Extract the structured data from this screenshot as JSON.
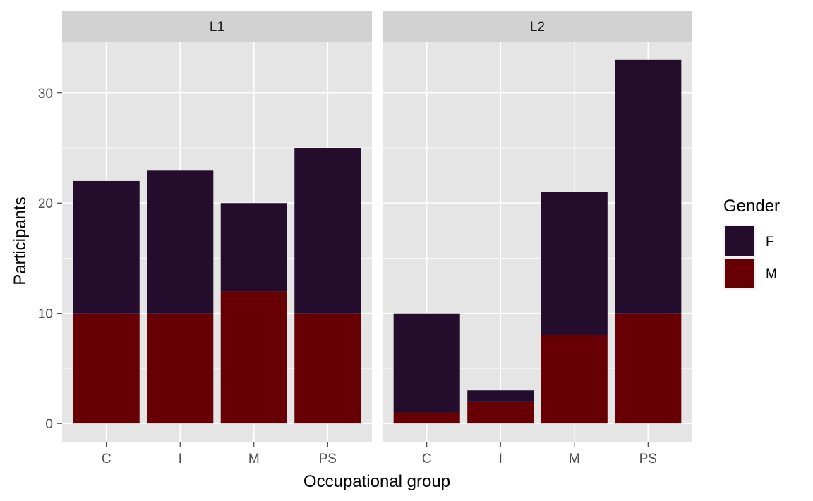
{
  "chart_data": {
    "type": "bar",
    "stacked": true,
    "facets": [
      {
        "label": "L1",
        "categories": [
          "C",
          "I",
          "M",
          "PS"
        ],
        "series": [
          {
            "name": "F",
            "values": [
              12,
              13,
              8,
              15
            ]
          },
          {
            "name": "M",
            "values": [
              10,
              10,
              12,
              10
            ]
          }
        ]
      },
      {
        "label": "L2",
        "categories": [
          "C",
          "I",
          "M",
          "PS"
        ],
        "series": [
          {
            "name": "F",
            "values": [
              9,
              1,
              13,
              23
            ]
          },
          {
            "name": "M",
            "values": [
              1,
              2,
              8,
              10
            ]
          }
        ]
      }
    ],
    "xlabel": "Occupational group",
    "ylabel": "Participants",
    "ylim": [
      -1.65,
      34.65
    ],
    "yticks": [
      0,
      10,
      20,
      30
    ],
    "grid": true,
    "legend": {
      "title": "Gender",
      "placement": "right",
      "entries": [
        {
          "name": "F",
          "color": "#230c2c"
        },
        {
          "name": "M",
          "color": "#660004"
        }
      ]
    },
    "colors": {
      "F": "#230c2c",
      "M": "#660004",
      "panel_background": "#e5e5e5",
      "strip_background": "#d2d2d2",
      "grid": "#ffffff"
    }
  }
}
